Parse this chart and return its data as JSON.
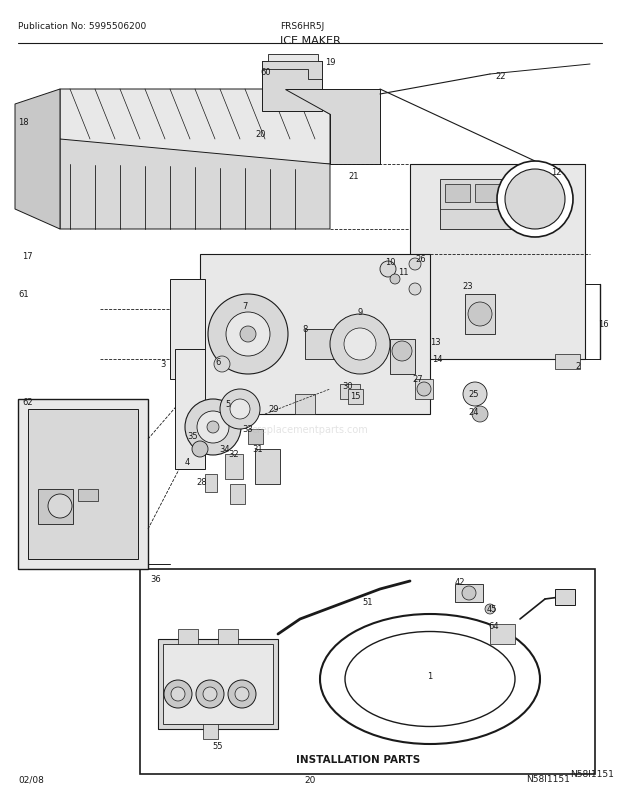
{
  "title": "ICE MAKER",
  "pub_no": "Publication No: 5995506200",
  "model": "FRS6HR5J",
  "diagram_id": "N58I1151",
  "date": "02/08",
  "page": "20",
  "install_parts_label": "INSTALLATION PARTS",
  "bg_color": "#ffffff",
  "line_color": "#1a1a1a",
  "text_color": "#1a1a1a",
  "gray1": "#c8c8c8",
  "gray2": "#d8d8d8",
  "gray3": "#e8e8e8",
  "gray4": "#b0b0b0"
}
